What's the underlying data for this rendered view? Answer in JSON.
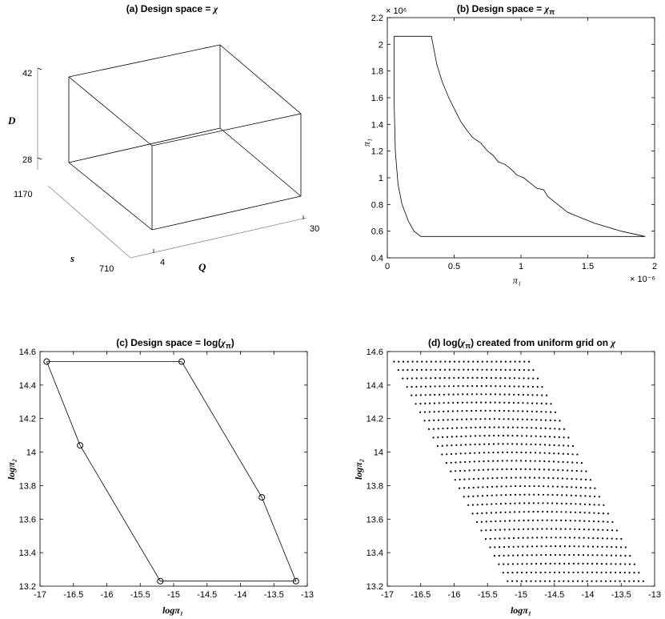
{
  "chart_data": [
    {
      "panel": "a",
      "type": "3d-box",
      "title_prefix": "(a) Design space = ",
      "title_symbol": "χ",
      "axes": {
        "D": {
          "label": "D",
          "ticks": [
            "42",
            "28"
          ],
          "range": [
            28,
            42
          ]
        },
        "s": {
          "label": "s",
          "ticks": [
            "1170",
            "710"
          ],
          "range": [
            710,
            1170
          ]
        },
        "Q": {
          "label": "Q",
          "ticks": [
            "4",
            "30"
          ],
          "range": [
            4,
            30
          ]
        }
      }
    },
    {
      "panel": "b",
      "type": "line",
      "title_prefix": "(b) Design space = ",
      "title_symbol": "χ",
      "title_sub": "π",
      "xlabel": "π₁",
      "ylabel": "π₁",
      "x_exponent": "× 10⁻⁶",
      "y_exponent": "× 10⁶",
      "xlim": [
        0,
        2
      ],
      "ylim": [
        0.4,
        2.2
      ],
      "xticks": [
        "0",
        "0.5",
        "1",
        "1.5",
        "2"
      ],
      "yticks": [
        "0.4",
        "0.6",
        "0.8",
        "1",
        "1.2",
        "1.4",
        "1.6",
        "1.8",
        "2",
        "2.2"
      ],
      "series": [
        {
          "points": [
            [
              0.05,
              2.06
            ],
            [
              0.05,
              1.6
            ],
            [
              0.06,
              1.2
            ],
            [
              0.08,
              0.95
            ],
            [
              0.11,
              0.8
            ],
            [
              0.16,
              0.67
            ],
            [
              0.2,
              0.6
            ],
            [
              0.25,
              0.56
            ],
            [
              0.5,
              0.56
            ],
            [
              1.0,
              0.56
            ],
            [
              1.5,
              0.56
            ],
            [
              1.93,
              0.56
            ],
            [
              1.75,
              0.6
            ],
            [
              1.55,
              0.66
            ],
            [
              1.35,
              0.74
            ],
            [
              1.2,
              0.86
            ],
            [
              1.17,
              0.91
            ],
            [
              1.12,
              0.92
            ],
            [
              1.07,
              0.96
            ],
            [
              1.02,
              1.0
            ],
            [
              0.97,
              1.02
            ],
            [
              0.92,
              1.07
            ],
            [
              0.88,
              1.1
            ],
            [
              0.83,
              1.12
            ],
            [
              0.79,
              1.17
            ],
            [
              0.75,
              1.2
            ],
            [
              0.7,
              1.26
            ],
            [
              0.64,
              1.3
            ],
            [
              0.6,
              1.35
            ],
            [
              0.55,
              1.42
            ],
            [
              0.5,
              1.52
            ],
            [
              0.46,
              1.6
            ],
            [
              0.41,
              1.72
            ],
            [
              0.37,
              1.85
            ],
            [
              0.33,
              2.06
            ],
            [
              0.05,
              2.06
            ]
          ]
        }
      ]
    },
    {
      "panel": "c",
      "type": "line",
      "title_prefix": "(c) Design space = log(",
      "title_symbol": "χ",
      "title_sub": "π",
      "title_suffix": ")",
      "xlabel": "logπ₁",
      "ylabel": "logπ₂",
      "xlim": [
        -17,
        -13
      ],
      "ylim": [
        13.2,
        14.6
      ],
      "xticks": [
        "-17",
        "-16.5",
        "-16",
        "-15.5",
        "-15",
        "-14.5",
        "-14",
        "-13.5",
        "-13"
      ],
      "yticks": [
        "13.2",
        "13.4",
        "13.6",
        "13.8",
        "14",
        "14.2",
        "14.4",
        "14.6"
      ],
      "series": [
        {
          "points": [
            [
              -16.9,
              14.54
            ],
            [
              -14.88,
              14.54
            ],
            [
              -13.68,
              13.73
            ],
            [
              -13.17,
              13.23
            ],
            [
              -15.2,
              13.23
            ],
            [
              -16.4,
              14.04
            ],
            [
              -16.9,
              14.54
            ]
          ],
          "markers": [
            [
              -16.9,
              14.54
            ],
            [
              -14.88,
              14.54
            ],
            [
              -13.68,
              13.73
            ],
            [
              -13.17,
              13.23
            ],
            [
              -15.2,
              13.23
            ],
            [
              -16.4,
              14.04
            ]
          ]
        }
      ]
    },
    {
      "panel": "d",
      "type": "scatter",
      "title_prefix": "(d) log(",
      "title_symbol": "χ",
      "title_sub": "π",
      "title_suffix": ") created from uniform grid on ",
      "title_symbol2": "χ",
      "xlabel": "logπ₁",
      "ylabel": "logπ₂",
      "xlim": [
        -17,
        -13
      ],
      "ylim": [
        13.2,
        14.6
      ],
      "xticks": [
        "-17",
        "-16.5",
        "-16",
        "-15.5",
        "-15",
        "-14.5",
        "-14",
        "-13.5",
        "-13"
      ],
      "yticks": [
        "13.2",
        "13.4",
        "13.6",
        "13.8",
        "14",
        "14.2",
        "14.4",
        "14.6"
      ],
      "grid": {
        "rows": 27,
        "cols": 30,
        "bottom_right": [
          -13.17,
          13.23
        ],
        "row_step": [
          -0.0775,
          0.0504
        ],
        "col_step_strong": [
          -0.069,
          0
        ],
        "fan_bend": 0.35
      }
    }
  ]
}
